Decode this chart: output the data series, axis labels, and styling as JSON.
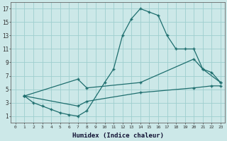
{
  "xlabel": "Humidex (Indice chaleur)",
  "bg_color": "#cce8e8",
  "grid_color": "#9ecece",
  "line_color": "#1e6e6e",
  "xlim": [
    -0.5,
    23.5
  ],
  "ylim": [
    0,
    18
  ],
  "xticks": [
    0,
    1,
    2,
    3,
    4,
    5,
    6,
    7,
    8,
    9,
    10,
    11,
    12,
    13,
    14,
    15,
    16,
    17,
    18,
    19,
    20,
    21,
    22,
    23
  ],
  "yticks": [
    1,
    3,
    5,
    7,
    9,
    11,
    13,
    15,
    17
  ],
  "line1_x": [
    1,
    2,
    3,
    4,
    5,
    6,
    7,
    8,
    10,
    11,
    12,
    13,
    14,
    15,
    16,
    17,
    18,
    19,
    20,
    21,
    22,
    23
  ],
  "line1_y": [
    4,
    3,
    2.5,
    2,
    1.5,
    1.2,
    1,
    1.8,
    6,
    8,
    13,
    15.5,
    17,
    16.5,
    16,
    13,
    11,
    11,
    11,
    8,
    7.5,
    6
  ],
  "line2_x": [
    1,
    7,
    8,
    14,
    20,
    21,
    23
  ],
  "line2_y": [
    4,
    6.5,
    5.2,
    6,
    9.5,
    8,
    6
  ],
  "line3_x": [
    1,
    7,
    8,
    14,
    20,
    22,
    23
  ],
  "line3_y": [
    4,
    2.5,
    3.2,
    4.5,
    5.2,
    5.5,
    5.5
  ]
}
